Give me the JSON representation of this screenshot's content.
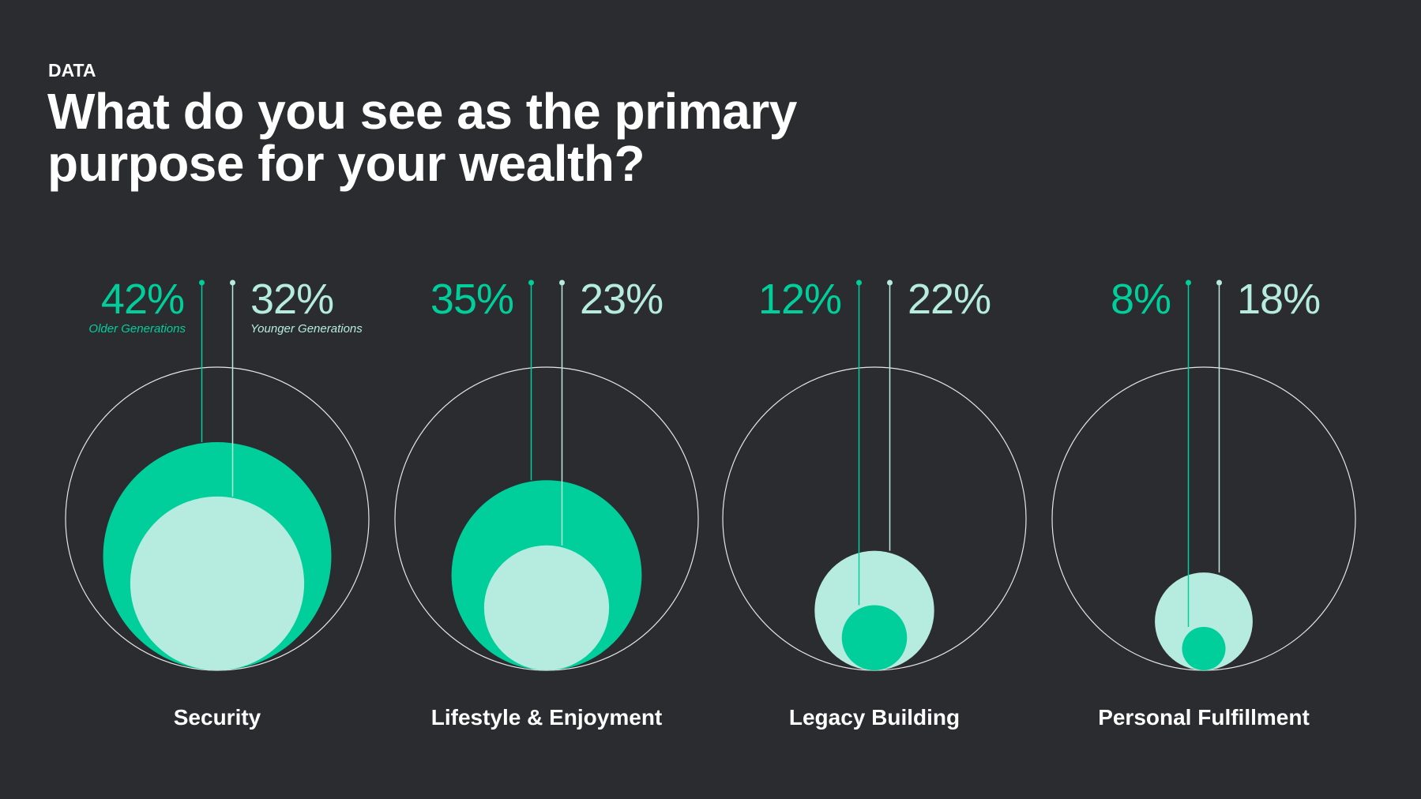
{
  "chart_data": {
    "type": "bubble",
    "kicker": "DATA",
    "title": "What do you see as the primary purpose for your wealth?",
    "categories": [
      "Security",
      "Lifestyle & Enjoyment",
      "Legacy Building",
      "Personal Fulfillment"
    ],
    "series": [
      {
        "name": "Older Generations",
        "color": "#00cf9b",
        "values": [
          42,
          35,
          12,
          8
        ],
        "value_labels": [
          "42%",
          "35%",
          "12%",
          "8%"
        ]
      },
      {
        "name": "Younger Generations",
        "color": "#b6ecdf",
        "values": [
          32,
          23,
          22,
          18
        ],
        "value_labels": [
          "32%",
          "23%",
          "22%",
          "18%"
        ]
      }
    ]
  }
}
